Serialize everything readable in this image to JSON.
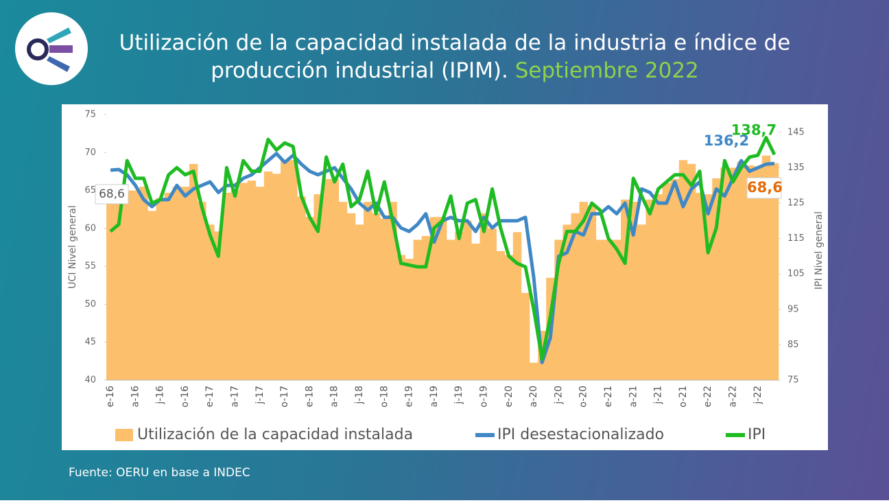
{
  "chart_data": {
    "type": "bar-line",
    "title": [
      "Utilización de la capacidad instalada de la industria e índice de",
      "producción industrial (IPIM)."
    ],
    "title_highlight": "Septiembre 2022",
    "source": "Fuente: OERU en base a INDEC",
    "ylabel": "UCI Nivel general",
    "y2label": "IPI Nivel general",
    "annotations": [
      {
        "text": "68,6"
      }
    ],
    "categories": [
      "e-16",
      null,
      null,
      "a-16",
      null,
      null,
      "j-16",
      null,
      null,
      "o-16",
      null,
      null,
      "e-17",
      null,
      null,
      "a-17",
      null,
      null,
      "j-17",
      null,
      null,
      "o-17",
      null,
      null,
      "e-18",
      null,
      null,
      "a-18",
      null,
      null,
      "j-18",
      null,
      null,
      "o-18",
      null,
      null,
      "e-19",
      null,
      null,
      "a-19",
      null,
      null,
      "j-19",
      null,
      null,
      "o-19",
      null,
      null,
      "e-20",
      null,
      null,
      "a-20",
      null,
      null,
      "j-20",
      null,
      null,
      "o-20",
      null,
      null,
      "e-21",
      null,
      null,
      "a-21",
      null,
      null,
      "j-21",
      null,
      null,
      "o-21",
      null,
      null,
      "e-22",
      null,
      null,
      "a-22",
      null,
      null,
      "j-22",
      null,
      null
    ],
    "ylim": [
      40,
      75
    ],
    "yticks": [
      40,
      45,
      50,
      55,
      60,
      65,
      70,
      75
    ],
    "y2lim": [
      75,
      150
    ],
    "y2ticks": [
      75,
      85,
      95,
      105,
      115,
      125,
      135,
      145
    ],
    "series": [
      {
        "name": "Utilización de la capacidad instalada",
        "type": "bar",
        "color": "#fcbf6b",
        "axis": "y",
        "values": [
          63.2,
          65,
          65,
          65,
          65.5,
          62.3,
          64,
          64.7,
          65.5,
          65.5,
          68.5,
          63.5,
          60.5,
          59.6,
          64.7,
          65,
          66,
          66.3,
          65.5,
          67.5,
          67.2,
          69,
          69,
          64.2,
          61.5,
          64.5,
          66.5,
          66.5,
          63.5,
          62,
          60.5,
          63.5,
          62,
          61.3,
          63.5,
          56.5,
          56,
          58.5,
          59,
          61.5,
          61.5,
          58.5,
          59.6,
          61,
          58,
          62,
          60,
          57,
          56.5,
          59.5,
          51.5,
          42.3,
          46.5,
          53.5,
          58.5,
          60.5,
          62,
          63.5,
          63,
          58.5,
          58.5,
          58.5,
          63.8,
          63.5,
          60.5,
          63.8,
          64.5,
          66,
          66.5,
          69,
          68.5,
          64.7,
          64.5,
          66.6,
          68,
          68,
          68.8,
          68.3,
          68.2,
          69.6,
          68.6
        ],
        "value_labels": [
          null,
          null,
          null,
          null,
          null,
          null,
          null,
          null,
          null,
          null,
          null,
          null,
          null,
          null,
          null,
          null,
          null,
          null,
          null,
          null,
          null,
          null,
          null,
          null,
          null,
          null,
          null,
          null,
          null,
          null,
          null,
          null,
          null,
          null,
          null,
          null,
          null,
          null,
          null,
          null,
          null,
          null,
          null,
          null,
          null,
          null,
          null,
          null,
          null,
          null,
          null,
          null,
          null,
          null,
          null,
          null,
          null,
          null,
          null,
          null,
          null,
          null,
          null,
          null,
          null,
          null,
          null,
          null,
          null,
          null,
          null,
          null,
          null,
          null,
          null,
          null,
          null,
          null,
          null,
          null,
          "68,6"
        ]
      },
      {
        "name": "IPI desestacionalizado",
        "type": "line",
        "color": "#3f88c5",
        "axis": "y2",
        "values": [
          134.3,
          134.5,
          133,
          130,
          126,
          124,
          126,
          126,
          130,
          127,
          129,
          130,
          131,
          128,
          130,
          130,
          132,
          133,
          135,
          137,
          139,
          136.5,
          138.5,
          136,
          134,
          133,
          134,
          135,
          132,
          129,
          125,
          123,
          125,
          121,
          121,
          118,
          117,
          119,
          122,
          114,
          120,
          121,
          120,
          120,
          117,
          121,
          118,
          120,
          120,
          120,
          121,
          104,
          80,
          87,
          110,
          111,
          117,
          116,
          122,
          122,
          124,
          122,
          125,
          116,
          129,
          128,
          125,
          125,
          131,
          124,
          129,
          131,
          122,
          129,
          127,
          132,
          137,
          134,
          135,
          136,
          136.2
        ],
        "value_labels": [
          null,
          null,
          null,
          null,
          null,
          null,
          null,
          null,
          null,
          null,
          null,
          null,
          null,
          null,
          null,
          null,
          null,
          null,
          null,
          null,
          null,
          null,
          null,
          null,
          null,
          null,
          null,
          null,
          null,
          null,
          null,
          null,
          null,
          null,
          null,
          null,
          null,
          null,
          null,
          null,
          null,
          null,
          null,
          null,
          null,
          null,
          null,
          null,
          null,
          null,
          null,
          null,
          null,
          null,
          null,
          null,
          null,
          null,
          null,
          null,
          null,
          null,
          null,
          null,
          null,
          null,
          null,
          null,
          null,
          null,
          null,
          null,
          null,
          null,
          null,
          null,
          null,
          null,
          null,
          null,
          "136,2"
        ]
      },
      {
        "name": "IPI",
        "type": "line",
        "color": "#1fbb23",
        "axis": "y2",
        "values": [
          117,
          119,
          137,
          132,
          132,
          125,
          126,
          133,
          135,
          133,
          134,
          124,
          116,
          110,
          135,
          127,
          137,
          134,
          134,
          143,
          140,
          142,
          141,
          127,
          121,
          117,
          138,
          131,
          136,
          124,
          126,
          134,
          122,
          131,
          120,
          108,
          107.5,
          107,
          107,
          118,
          120,
          127,
          115,
          125,
          126,
          117,
          129,
          118,
          110,
          108,
          107,
          95,
          81,
          93,
          108,
          117,
          117,
          120,
          125,
          123,
          115,
          112,
          108,
          132,
          127,
          122,
          129,
          131,
          133,
          133,
          130,
          134,
          111,
          118,
          137,
          131,
          135,
          138,
          138.5,
          143.5,
          138.7
        ],
        "value_labels": [
          null,
          null,
          null,
          null,
          null,
          null,
          null,
          null,
          null,
          null,
          null,
          null,
          null,
          null,
          null,
          null,
          null,
          null,
          null,
          null,
          null,
          null,
          null,
          null,
          null,
          null,
          null,
          null,
          null,
          null,
          null,
          null,
          null,
          null,
          null,
          null,
          null,
          null,
          null,
          null,
          null,
          null,
          null,
          null,
          null,
          null,
          null,
          null,
          null,
          null,
          null,
          null,
          null,
          null,
          null,
          null,
          null,
          null,
          null,
          null,
          null,
          null,
          null,
          null,
          null,
          null,
          null,
          null,
          null,
          null,
          null,
          null,
          null,
          null,
          null,
          null,
          null,
          null,
          null,
          null,
          "138,7"
        ]
      }
    ]
  }
}
